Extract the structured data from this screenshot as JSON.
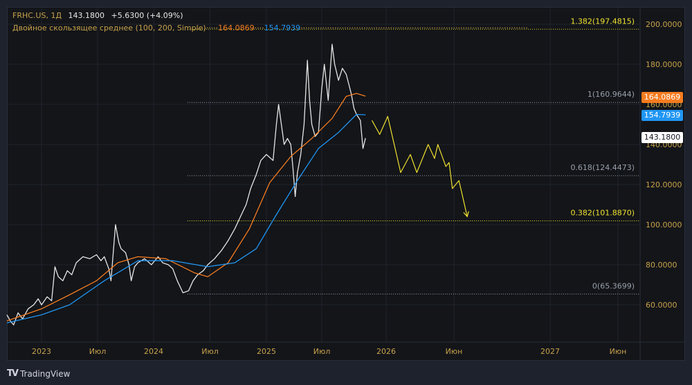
{
  "header": {
    "symbol": "FRHC.US, 1Д",
    "price": "143.1800",
    "change": "+5.6300 (+4.09%)"
  },
  "indicator": {
    "label": "Двойное скользящее среднее (100, 200, Simple)",
    "ma100_value": "164.0869",
    "ma200_value": "154.7939"
  },
  "badges": {
    "ma100": "164.0869",
    "ma200": "154.7939",
    "last": "143.1800"
  },
  "colors": {
    "price": "#e6e6e6",
    "ma100": "#f57c20",
    "ma200": "#2196f3",
    "projection": "#f0e130",
    "fib_gray": "#9aa0aa",
    "fib_yellow": "#f0e130",
    "axis_text": "#c8a24a"
  },
  "branding": {
    "logo": "TradingView"
  },
  "chart_data": {
    "type": "line",
    "title": "FRHC.US, 1Д",
    "ylim": [
      45,
      205
    ],
    "xlim": [
      2022.69,
      2027.63
    ],
    "grid": true,
    "y_ticks": [
      "60.0000",
      "80.0000",
      "100.0000",
      "120.0000",
      "140.0000",
      "160.0000",
      "180.0000",
      "200.0000"
    ],
    "y_tick_values": [
      60,
      80,
      100,
      120,
      140,
      160,
      180,
      200
    ],
    "x_ticks": [
      {
        "label": "2023",
        "t": 2023
      },
      {
        "label": "Июл",
        "t": 2023.5
      },
      {
        "label": "2024",
        "t": 2024
      },
      {
        "label": "Июл",
        "t": 2024.5
      },
      {
        "label": "2025",
        "t": 2025
      },
      {
        "label": "Июл",
        "t": 2025.5
      },
      {
        "label": "2026",
        "t": 2026
      },
      {
        "label": "Июн",
        "t": 2026.42
      },
      {
        "label": "2027",
        "t": 2027
      },
      {
        "label": "Июн",
        "t": 2027.42
      }
    ],
    "series": [
      {
        "name": "FRHC.US",
        "points": [
          [
            2022.69,
            55
          ],
          [
            2022.72,
            52
          ],
          [
            2022.75,
            50
          ],
          [
            2022.79,
            56
          ],
          [
            2022.83,
            53
          ],
          [
            2022.88,
            58
          ],
          [
            2022.93,
            60
          ],
          [
            2022.97,
            63
          ],
          [
            2023.0,
            60
          ],
          [
            2023.05,
            64
          ],
          [
            2023.09,
            62
          ],
          [
            2023.12,
            79
          ],
          [
            2023.15,
            74
          ],
          [
            2023.19,
            72
          ],
          [
            2023.23,
            77
          ],
          [
            2023.27,
            75
          ],
          [
            2023.31,
            81
          ],
          [
            2023.37,
            84
          ],
          [
            2023.43,
            83
          ],
          [
            2023.49,
            85
          ],
          [
            2023.53,
            82
          ],
          [
            2023.56,
            84
          ],
          [
            2023.6,
            78
          ],
          [
            2023.62,
            72
          ],
          [
            2023.66,
            100
          ],
          [
            2023.69,
            91
          ],
          [
            2023.71,
            88
          ],
          [
            2023.75,
            86
          ],
          [
            2023.78,
            80
          ],
          [
            2023.8,
            72
          ],
          [
            2023.83,
            79
          ],
          [
            2023.86,
            81
          ],
          [
            2023.92,
            83
          ],
          [
            2023.98,
            80
          ],
          [
            2024.04,
            84
          ],
          [
            2024.08,
            81
          ],
          [
            2024.13,
            80
          ],
          [
            2024.17,
            78
          ],
          [
            2024.21,
            72
          ],
          [
            2024.26,
            66
          ],
          [
            2024.31,
            67
          ],
          [
            2024.35,
            72
          ],
          [
            2024.39,
            75
          ],
          [
            2024.44,
            77
          ],
          [
            2024.48,
            80
          ],
          [
            2024.54,
            83
          ],
          [
            2024.6,
            87
          ],
          [
            2024.66,
            92
          ],
          [
            2024.72,
            98
          ],
          [
            2024.77,
            104
          ],
          [
            2024.82,
            110
          ],
          [
            2024.86,
            118
          ],
          [
            2024.91,
            125
          ],
          [
            2024.95,
            132
          ],
          [
            2025.0,
            135
          ],
          [
            2025.06,
            132
          ],
          [
            2025.09,
            150
          ],
          [
            2025.11,
            160
          ],
          [
            2025.14,
            148
          ],
          [
            2025.16,
            140
          ],
          [
            2025.19,
            143
          ],
          [
            2025.22,
            140
          ],
          [
            2025.24,
            128
          ],
          [
            2025.26,
            114
          ],
          [
            2025.28,
            126
          ],
          [
            2025.31,
            135
          ],
          [
            2025.34,
            150
          ],
          [
            2025.37,
            182
          ],
          [
            2025.39,
            162
          ],
          [
            2025.41,
            150
          ],
          [
            2025.44,
            144
          ],
          [
            2025.47,
            146
          ],
          [
            2025.5,
            168
          ],
          [
            2025.52,
            180
          ],
          [
            2025.55,
            162
          ],
          [
            2025.58,
            190
          ],
          [
            2025.6,
            180
          ],
          [
            2025.63,
            172
          ],
          [
            2025.66,
            178
          ],
          [
            2025.69,
            175
          ],
          [
            2025.71,
            170
          ],
          [
            2025.73,
            165
          ],
          [
            2025.75,
            158
          ],
          [
            2025.77,
            155
          ],
          [
            2025.8,
            152
          ],
          [
            2025.82,
            138
          ],
          [
            2025.84,
            143.18
          ]
        ]
      },
      {
        "name": "MA 100",
        "points": [
          [
            2022.69,
            52
          ],
          [
            2023.0,
            58
          ],
          [
            2023.25,
            65
          ],
          [
            2023.49,
            72
          ],
          [
            2023.68,
            81
          ],
          [
            2023.86,
            84
          ],
          [
            2024.11,
            83
          ],
          [
            2024.36,
            76
          ],
          [
            2024.48,
            74
          ],
          [
            2024.66,
            81
          ],
          [
            2024.85,
            98
          ],
          [
            2025.03,
            121
          ],
          [
            2025.22,
            134
          ],
          [
            2025.41,
            143
          ],
          [
            2025.58,
            153
          ],
          [
            2025.69,
            164
          ],
          [
            2025.77,
            165.5
          ],
          [
            2025.84,
            164.09
          ]
        ]
      },
      {
        "name": "MA 200",
        "points": [
          [
            2022.69,
            51
          ],
          [
            2023.0,
            55
          ],
          [
            2023.25,
            60
          ],
          [
            2023.56,
            72
          ],
          [
            2023.86,
            82
          ],
          [
            2024.17,
            82
          ],
          [
            2024.48,
            79
          ],
          [
            2024.72,
            81
          ],
          [
            2024.91,
            88
          ],
          [
            2025.09,
            105
          ],
          [
            2025.28,
            122
          ],
          [
            2025.47,
            138
          ],
          [
            2025.63,
            146
          ],
          [
            2025.77,
            155
          ],
          [
            2025.84,
            154.79
          ]
        ]
      },
      {
        "name": "Projection",
        "points": [
          [
            2025.89,
            152
          ],
          [
            2025.95,
            145
          ],
          [
            2026.01,
            154
          ],
          [
            2026.09,
            126
          ],
          [
            2026.15,
            135
          ],
          [
            2026.19,
            126
          ],
          [
            2026.26,
            140
          ],
          [
            2026.3,
            133
          ],
          [
            2026.32,
            140
          ],
          [
            2026.37,
            129
          ],
          [
            2026.39,
            131
          ],
          [
            2026.41,
            118
          ],
          [
            2026.45,
            122
          ],
          [
            2026.5,
            104
          ]
        ]
      }
    ],
    "fibonacci": {
      "start_t": 2024.3,
      "levels": [
        {
          "ratio": "1.382",
          "value": 197.4815,
          "label": "1.382(197.4815)",
          "highlight": true
        },
        {
          "ratio": "1",
          "value": 160.9644,
          "label": "1(160.9644)",
          "highlight": false
        },
        {
          "ratio": "0.618",
          "value": 124.4473,
          "label": "0.618(124.4473)",
          "highlight": false
        },
        {
          "ratio": "0.382",
          "value": 101.887,
          "label": "0.382(101.8870)",
          "highlight": true
        },
        {
          "ratio": "0",
          "value": 65.3699,
          "label": "0(65.3699)",
          "highlight": false
        }
      ]
    }
  }
}
